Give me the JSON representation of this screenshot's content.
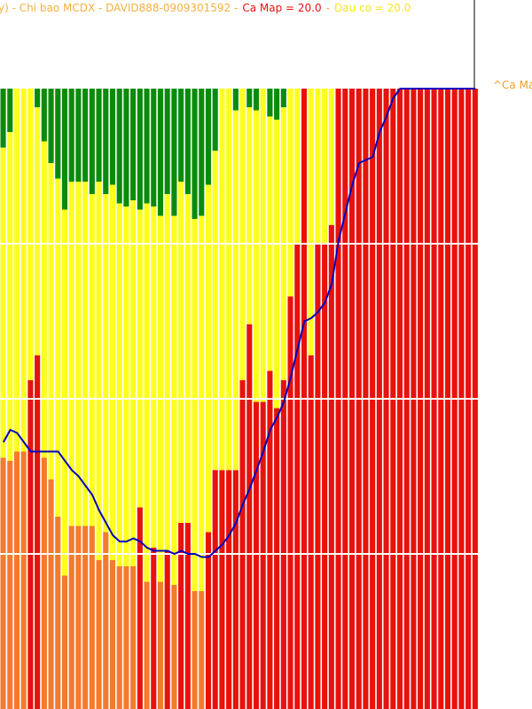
{
  "chart_data": {
    "type": "stacked_bar",
    "title_parts": [
      {
        "text": "y) - Chi bao MCDX - DAVID888-0909301592 -",
        "color": "#f2b040"
      },
      {
        "text": "Ca Map = 20.0",
        "color": "#e81010"
      },
      {
        "text": "-",
        "color": "#f2b040"
      },
      {
        "text": "Dau co = 20.0",
        "color": "#f5e61e"
      }
    ],
    "right_label": {
      "text": "^Ca Ma",
      "color": "#f2a020"
    },
    "ylim": [
      0,
      20
    ],
    "grid_values": [
      5,
      10,
      15
    ],
    "grid_color": "#ffffff",
    "series": [
      {
        "colors": [
          "#f47a2c",
          "#f47a2c",
          "#f47a2c",
          "#f47a2c",
          "#e8120c",
          "#e8120c",
          "#f47a2c",
          "#f47a2c",
          "#f47a2c",
          "#f47a2c",
          "#f47a2c",
          "#f47a2c",
          "#f47a2c",
          "#f47a2c",
          "#f47a2c",
          "#f47a2c",
          "#f47a2c",
          "#f47a2c",
          "#f47a2c",
          "#f47a2c",
          "#e8120c",
          "#f47a2c",
          "#e8120c",
          "#f47a2c",
          "#e8120c",
          "#f47a2c",
          "#e8120c",
          "#e8120c",
          "#f47a2c",
          "#f47a2c",
          "#e8120c",
          "#e8120c",
          "#e8120c",
          "#e8120c",
          "#e8120c",
          "#e8120c",
          "#e8120c",
          "#e8120c",
          "#e8120c",
          "#e8120c",
          "#e8120c",
          "#e8120c",
          "#e8120c",
          "#e8120c",
          "#e8120c",
          "#e8120c",
          "#e8120c",
          "#e8120c",
          "#e8120c",
          "#e8120c",
          "#e8120c",
          "#e8120c",
          "#e8120c",
          "#e8120c",
          "#e8120c",
          "#e8120c",
          "#e8120c",
          "#e8120c",
          "#e8120c",
          "#e8120c",
          "#e8120c",
          "#e8120c",
          "#e8120c",
          "#e8120c",
          "#e8120c",
          "#e8120c",
          "#e8120c",
          "#e8120c",
          "#e8120c",
          "#e8120c"
        ],
        "values": [
          8.1,
          8.0,
          8.3,
          8.3,
          10.6,
          11.4,
          8.1,
          7.4,
          6.2,
          4.3,
          5.9,
          5.9,
          5.9,
          5.9,
          4.8,
          5.7,
          4.8,
          4.6,
          4.6,
          4.6,
          6.5,
          4.1,
          5.2,
          4.1,
          5.1,
          4.0,
          6.0,
          6.0,
          3.8,
          3.8,
          5.7,
          7.7,
          7.7,
          7.7,
          7.7,
          10.6,
          12.4,
          9.9,
          9.9,
          10.9,
          9.7,
          10.6,
          13.3,
          15.0,
          20,
          11.4,
          15.0,
          15.0,
          15.6,
          20,
          20,
          20,
          20,
          20,
          20,
          20,
          20,
          20,
          20,
          20,
          20,
          20,
          20,
          20,
          20,
          20,
          20,
          20,
          20,
          20
        ]
      },
      {
        "color": "#ffff1e",
        "values": [
          10.0,
          10.6,
          11.7,
          11.7,
          9.4,
          8.0,
          10.2,
          10.2,
          10.9,
          11.8,
          11.1,
          11.1,
          11.1,
          10.7,
          12.2,
          10.9,
          12.1,
          11.7,
          11.6,
          11.8,
          9.6,
          12.2,
          11.0,
          11.8,
          11.5,
          11.9,
          11.0,
          10.6,
          12.0,
          12.1,
          11.2,
          10.3,
          12.3,
          12.3,
          11.6,
          9.4,
          7.0,
          9.4,
          10.1,
          8.2,
          9.3,
          8.8,
          6.7,
          5.0,
          0,
          8.6,
          5.0,
          5.0,
          4.4,
          0,
          0,
          0,
          0,
          0,
          0,
          0,
          0,
          0,
          0,
          0,
          0,
          0,
          0,
          0,
          0,
          0,
          0,
          0,
          0,
          0
        ]
      },
      {
        "color": "#0a8c0a",
        "values": [
          1.9,
          1.4,
          0,
          0,
          0,
          0.6,
          1.7,
          2.4,
          2.9,
          3.9,
          3.0,
          3.0,
          3.0,
          3.4,
          3.0,
          3.4,
          3.1,
          3.7,
          3.8,
          3.6,
          3.9,
          3.7,
          3.8,
          4.1,
          3.4,
          4.1,
          3.0,
          3.4,
          4.2,
          4.1,
          3.1,
          2.0,
          0,
          0,
          0.7,
          0,
          0.6,
          0.7,
          0,
          0.9,
          1.0,
          0.6,
          0,
          0,
          0,
          0,
          0,
          0,
          0,
          0,
          0,
          0,
          0,
          0,
          0,
          0,
          0,
          0,
          0,
          0,
          0,
          0,
          0,
          0,
          0,
          0,
          0,
          0,
          0,
          0
        ]
      },
      {
        "type": "line",
        "color": "#0000c0",
        "values": [
          8.6,
          9.0,
          8.9,
          8.6,
          8.3,
          8.3,
          8.3,
          8.3,
          8.3,
          8.0,
          7.7,
          7.5,
          7.2,
          6.9,
          6.4,
          6.0,
          5.6,
          5.4,
          5.4,
          5.5,
          5.4,
          5.2,
          5.1,
          5.1,
          5.1,
          5.0,
          5.1,
          5.0,
          5.0,
          4.9,
          4.9,
          5.1,
          5.3,
          5.6,
          6.0,
          6.6,
          7.1,
          7.7,
          8.3,
          9.0,
          9.4,
          9.9,
          10.7,
          11.6,
          12.5,
          12.6,
          12.8,
          13.1,
          13.7,
          15.1,
          16.0,
          16.9,
          17.6,
          17.7,
          17.8,
          18.6,
          19.1,
          19.7,
          20,
          20,
          20,
          20,
          20,
          20,
          20,
          20,
          20,
          20,
          20,
          20
        ]
      }
    ]
  }
}
